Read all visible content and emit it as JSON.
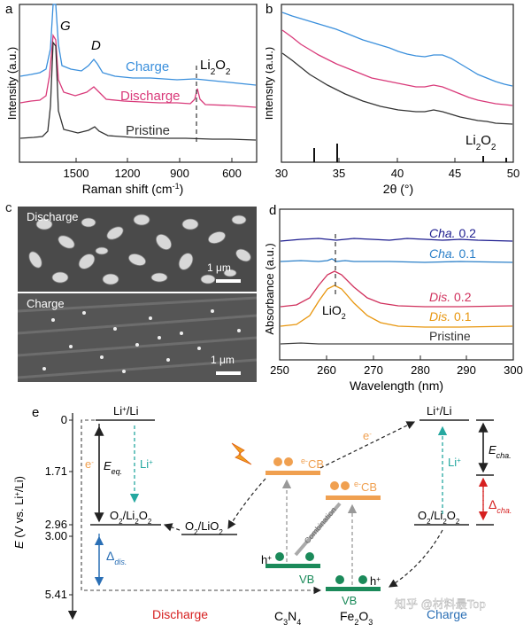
{
  "panel_a": {
    "letter": "a",
    "y_label": "Intensity (a.u.)",
    "x_label": "Raman shift (cm",
    "x_label_sup": "-1",
    "x_label_close": ")",
    "ticks": [
      "1500",
      "1200",
      "900",
      "600"
    ],
    "peak_g": "G",
    "peak_d": "D",
    "curve_charge": "Charge",
    "curve_discharge": "Discharge",
    "curve_pristine": "Pristine",
    "ref_li2o2": "Li",
    "ref_sub": "2",
    "ref_o": "O",
    "ref_sub2": "2"
  },
  "panel_b": {
    "letter": "b",
    "y_label": "Intensity (a.u.)",
    "x_label": "2θ (°)",
    "ticks": [
      "30",
      "35",
      "40",
      "45",
      "50"
    ],
    "ref_li": "Li",
    "ref_sub": "2",
    "ref_o": "O",
    "ref_sub2": "2"
  },
  "panel_c": {
    "letter": "c",
    "top_label": "Discharge",
    "bottom_label": "Charge",
    "scale_top": "1 μm",
    "scale_bottom": "1 μm"
  },
  "panel_d": {
    "letter": "d",
    "y_label": "Absorbance (a.u.)",
    "x_label": "Wavelength (nm)",
    "ticks": [
      "250",
      "260",
      "270",
      "280",
      "290",
      "300"
    ],
    "cha02_a": "Cha.",
    "cha02_b": " 0.2",
    "cha01_a": "Cha.",
    "cha01_b": " 0.1",
    "dis02_a": "Dis.",
    "dis02_b": " 0.2",
    "dis01_a": "Dis.",
    "dis01_b": " 0.1",
    "pristine": "Pristine",
    "lio2_a": "LiO",
    "lio2_sub": "2"
  },
  "panel_e": {
    "letter": "e",
    "y_label_e": "E",
    "y_label_rest": " (V vs. Li",
    "y_label_sup": "+",
    "y_label_end": "/Li)",
    "ticks": [
      "0",
      "1.71",
      "2.96",
      "3.00",
      "5.41"
    ],
    "li_left": "Li",
    "li_left_sup": "+",
    "li_left_end": "/Li",
    "li_right": "Li",
    "li_right_sup": "+",
    "li_right_end": "/Li",
    "e_minus_left": "e",
    "li_plus_left": "Li",
    "li_plus_left_sup": "+",
    "e_eq": "E",
    "e_eq_sub": "eq.",
    "o2li2o2_left_a": "O",
    "o2li2o2_left_b": "2",
    "o2li2o2_left_c": "/Li",
    "o2li2o2_left_d": "2",
    "o2li2o2_left_e": "O",
    "o2li2o2_left_f": "2",
    "delta_dis": "Δ",
    "delta_dis_sub": "dis.",
    "o2lio2_a": "O",
    "o2lio2_b": "2",
    "o2lio2_c": "/LiO",
    "o2lio2_d": "2",
    "cb1": "CB",
    "cb2": "CB",
    "vb1": "VB",
    "vb2": "VB",
    "h_plus": "h",
    "h_sup": "+",
    "combination": "Combination",
    "e_minus_top": "e",
    "li_plus_right": "Li",
    "li_plus_right_sup": "+",
    "e_cha": "E",
    "e_cha_sub": "cha.",
    "delta_cha": "Δ",
    "delta_cha_sub": "cha.",
    "o2li2o2_right_a": "O",
    "o2li2o2_right_b": "2",
    "o2li2o2_right_c": "/Li",
    "o2li2o2_right_d": "2",
    "o2li2o2_right_e": "O",
    "o2li2o2_right_f": "2",
    "discharge": "Discharge",
    "c3n4_a": "C",
    "c3n4_b": "3",
    "c3n4_c": "N",
    "c3n4_d": "4",
    "fe2o3_a": "Fe",
    "fe2o3_b": "2",
    "fe2o3_c": "O",
    "fe2o3_d": "3",
    "charge": "Charge",
    "watermark": "知乎 @材料最Top"
  },
  "colors": {
    "charge_blue": "#3a8fdc",
    "discharge_pink": "#d93a7a",
    "pristine_dark": "#333333",
    "cha02": "#1c1c8f",
    "cha01": "#2a7fc8",
    "dis02": "#d0305c",
    "dis01": "#e8960e",
    "orange": "#f0a050",
    "green": "#1b8a5a",
    "red_label": "#d62020",
    "teal": "#25a8a0",
    "blue_delta": "#2a6fb5"
  }
}
